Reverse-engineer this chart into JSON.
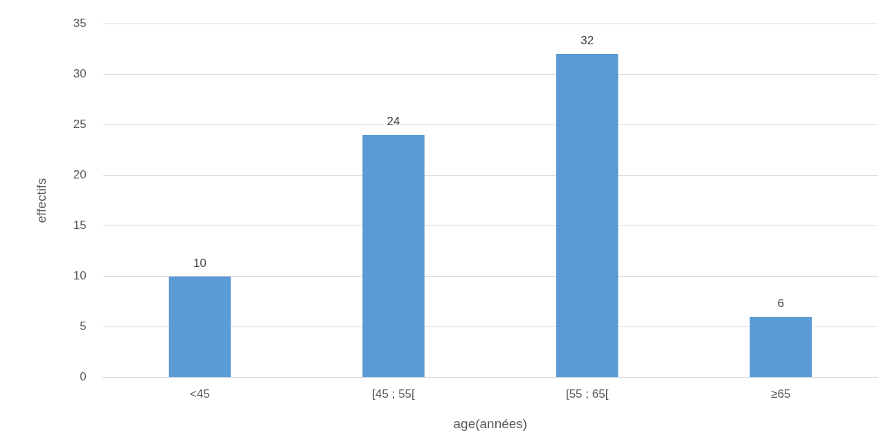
{
  "chart_data": {
    "type": "bar",
    "xlabel": "age(années)",
    "ylabel": "effectifs",
    "categories": [
      "<45",
      "[45 ; 55[",
      "[55 ; 65[",
      "≥65"
    ],
    "values": [
      10,
      24,
      32,
      6
    ],
    "color": "#5b9bd5",
    "ylim": [
      0,
      35
    ],
    "yticks": [
      0,
      5,
      10,
      15,
      20,
      25,
      30,
      35
    ],
    "grid": "y",
    "legend": false,
    "data_labels": true
  }
}
